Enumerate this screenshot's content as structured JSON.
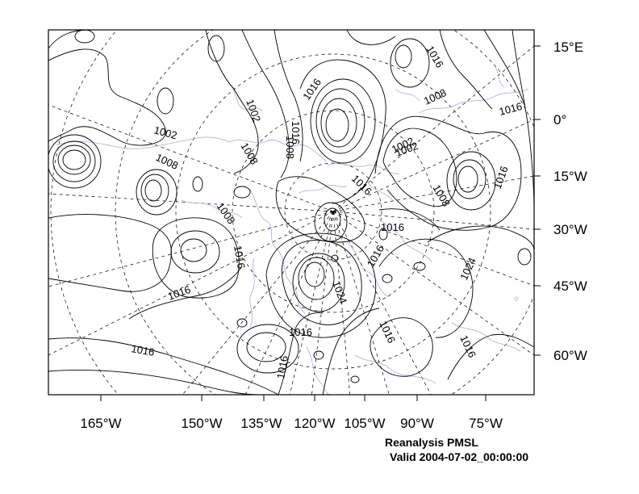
{
  "title": "Reanalysis PMSL",
  "valid_time": "Valid 2004-07-02_00:00:00",
  "colors": {
    "contour": "#000000",
    "coastline": "#b9a3d9",
    "gridline": "#000000",
    "background": "#ffffff"
  },
  "bottom_axis_labels": [
    "165°W",
    "150°W",
    "135°W",
    "120°W",
    "105°W",
    "90°W",
    "75°W"
  ],
  "right_axis_labels": [
    "15°E",
    "0°",
    "15°W",
    "30°W",
    "45°W",
    "60°W"
  ],
  "contour_levels_labeled": [
    "1002",
    "1002",
    "1008",
    "1016",
    "1008",
    "1016",
    "1002",
    "1016",
    "1016",
    "1008",
    "1008",
    "1008",
    "1016",
    "1016",
    "1016",
    "1016",
    "1024",
    "1016",
    "1016",
    "1016",
    "1016",
    "1024",
    "1016",
    "1016",
    "1008",
    "1002",
    "1016"
  ]
}
